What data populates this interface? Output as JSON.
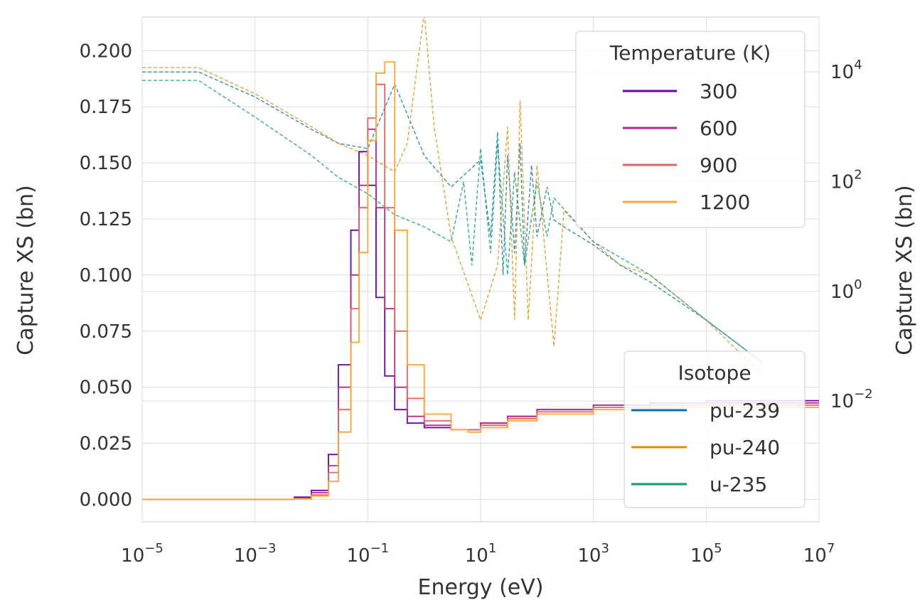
{
  "chart_data": {
    "type": "line",
    "title": "",
    "xlabel": "Energy (eV)",
    "ylabel_left": "Capture XS (bn)",
    "ylabel_right": "Capture XS (bn)",
    "x_scale": "log",
    "y_right_scale": "log",
    "xlim": [
      1e-05,
      10000000.0
    ],
    "ylim_left": [
      -0.01,
      0.215
    ],
    "ylim_right": [
      6.3e-05,
      100000
    ],
    "grid": true,
    "x_ticks": [
      {
        "base": "10",
        "exp": "−5",
        "value": 1e-05
      },
      {
        "base": "10",
        "exp": "−3",
        "value": 0.001
      },
      {
        "base": "10",
        "exp": "−1",
        "value": 0.1
      },
      {
        "base": "10",
        "exp": "1",
        "value": 10.0
      },
      {
        "base": "10",
        "exp": "3",
        "value": 1000.0
      },
      {
        "base": "10",
        "exp": "5",
        "value": 100000.0
      },
      {
        "base": "10",
        "exp": "7",
        "value": 10000000.0
      }
    ],
    "y_left_ticks": [
      "0.000",
      "0.025",
      "0.050",
      "0.075",
      "0.100",
      "0.125",
      "0.150",
      "0.175",
      "0.200"
    ],
    "y_right_ticks": [
      {
        "base": "10",
        "exp": "−2",
        "value": 0.01
      },
      {
        "base": "10",
        "exp": "0",
        "value": 1
      },
      {
        "base": "10",
        "exp": "2",
        "value": 100
      },
      {
        "base": "10",
        "exp": "4",
        "value": 10000
      }
    ],
    "temperature_legend": {
      "title": "Temperature (K)",
      "placement": "top-right",
      "entries": [
        {
          "label": "300",
          "color": "#6a00a8"
        },
        {
          "label": "600",
          "color": "#b12a90"
        },
        {
          "label": "900",
          "color": "#e16462"
        },
        {
          "label": "1200",
          "color": "#fca636"
        }
      ]
    },
    "isotope_legend": {
      "title": "Isotope",
      "placement": "lower-right",
      "entries": [
        {
          "label": "pu-239",
          "color": "#0173b2"
        },
        {
          "label": "pu-240",
          "color": "#de8f05"
        },
        {
          "label": "u-235",
          "color": "#029e73"
        }
      ]
    },
    "series": [
      {
        "name": "300",
        "axis": "left",
        "style": "step",
        "color": "#6a00a8",
        "x": [
          1e-05,
          0.001,
          0.005,
          0.01,
          0.02,
          0.03,
          0.05,
          0.07,
          0.1,
          0.14,
          0.2,
          0.3,
          0.5,
          1,
          3,
          6,
          10,
          30,
          100,
          1000,
          10000,
          100000.0,
          1000000.0,
          10000000.0
        ],
        "y": [
          0,
          0,
          0.001,
          0.004,
          0.02,
          0.06,
          0.12,
          0.155,
          0.14,
          0.09,
          0.055,
          0.04,
          0.034,
          0.032,
          0.031,
          0.031,
          0.034,
          0.037,
          0.04,
          0.042,
          0.043,
          0.044,
          0.044,
          0.044
        ]
      },
      {
        "name": "600",
        "axis": "left",
        "style": "step",
        "color": "#b12a90",
        "x": [
          1e-05,
          0.001,
          0.005,
          0.01,
          0.02,
          0.03,
          0.05,
          0.07,
          0.1,
          0.14,
          0.2,
          0.3,
          0.5,
          1,
          3,
          6,
          10,
          30,
          100,
          1000,
          10000,
          100000.0,
          1000000.0,
          10000000.0
        ],
        "y": [
          0,
          0,
          0.0005,
          0.003,
          0.015,
          0.05,
          0.1,
          0.14,
          0.165,
          0.13,
          0.085,
          0.05,
          0.037,
          0.033,
          0.031,
          0.031,
          0.034,
          0.037,
          0.04,
          0.042,
          0.043,
          0.043,
          0.043,
          0.043
        ]
      },
      {
        "name": "900",
        "axis": "left",
        "style": "step",
        "color": "#e16462",
        "x": [
          1e-05,
          0.001,
          0.005,
          0.01,
          0.02,
          0.03,
          0.05,
          0.07,
          0.1,
          0.14,
          0.2,
          0.3,
          0.5,
          1,
          3,
          6,
          10,
          30,
          100,
          1000,
          10000,
          100000.0,
          1000000.0,
          10000000.0
        ],
        "y": [
          0,
          0,
          0.0003,
          0.002,
          0.012,
          0.04,
          0.085,
          0.13,
          0.17,
          0.185,
          0.13,
          0.075,
          0.045,
          0.035,
          0.031,
          0.031,
          0.033,
          0.036,
          0.039,
          0.041,
          0.042,
          0.042,
          0.042,
          0.042
        ]
      },
      {
        "name": "1200",
        "axis": "left",
        "style": "step",
        "color": "#fca636",
        "x": [
          1e-05,
          0.001,
          0.005,
          0.01,
          0.02,
          0.03,
          0.05,
          0.07,
          0.1,
          0.14,
          0.2,
          0.3,
          0.5,
          1,
          3,
          6,
          10,
          30,
          100,
          1000,
          10000,
          100000.0,
          1000000.0,
          10000000.0
        ],
        "y": [
          0,
          0,
          0.0002,
          0.0015,
          0.008,
          0.03,
          0.07,
          0.11,
          0.16,
          0.19,
          0.195,
          0.12,
          0.06,
          0.038,
          0.031,
          0.03,
          0.032,
          0.035,
          0.038,
          0.04,
          0.041,
          0.041,
          0.041,
          0.041
        ]
      },
      {
        "name": "pu-239",
        "axis": "right",
        "style": "dashed",
        "color": "#0173b2",
        "x": [
          1e-05,
          0.0001,
          0.001,
          0.01,
          0.03,
          0.1,
          0.3,
          1,
          3,
          10,
          15,
          20,
          25,
          30,
          40,
          50,
          60,
          80,
          100,
          150,
          200,
          300,
          1000,
          3000,
          10000,
          100000.0,
          1000000.0
        ],
        "y": [
          10000,
          10000,
          3500,
          900,
          500,
          400,
          6000,
          300,
          80,
          250,
          10,
          800,
          2,
          300,
          5,
          500,
          3,
          200,
          10,
          80,
          20,
          15,
          7,
          3,
          1.5,
          0.3,
          0.05
        ]
      },
      {
        "name": "pu-240",
        "axis": "right",
        "style": "dashed",
        "color": "#de8f05",
        "x": [
          1e-05,
          0.0001,
          0.001,
          0.01,
          0.03,
          0.1,
          0.3,
          0.5,
          1,
          1.5,
          3,
          10,
          20,
          30,
          40,
          50,
          70,
          100,
          200,
          300,
          1000,
          3000,
          10000,
          100000.0,
          1000000.0
        ],
        "y": [
          12000,
          12000,
          4000,
          1000,
          500,
          300,
          150,
          500,
          120000,
          1000,
          10,
          0.3,
          3,
          1000,
          0.3,
          3000,
          0.3,
          200,
          0.1,
          30,
          8,
          3,
          2,
          0.3,
          0.03
        ]
      },
      {
        "name": "u-235",
        "axis": "right",
        "style": "dashed",
        "color": "#029e73",
        "x": [
          1e-05,
          0.0001,
          0.001,
          0.01,
          0.03,
          0.1,
          0.3,
          1,
          3,
          5,
          7,
          10,
          15,
          20,
          30,
          40,
          60,
          100,
          150,
          200,
          1000,
          10000,
          100000.0,
          1000000.0
        ],
        "y": [
          7000,
          7000,
          1500,
          300,
          120,
          60,
          25,
          15,
          8,
          100,
          3,
          400,
          5,
          500,
          2,
          150,
          3,
          100,
          10,
          50,
          8,
          2,
          0.3,
          0.05
        ]
      }
    ]
  }
}
